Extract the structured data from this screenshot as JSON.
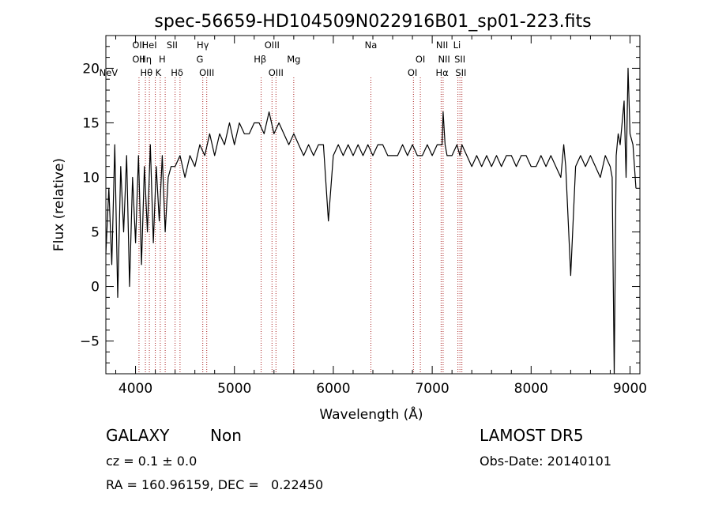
{
  "chart_data": {
    "type": "line",
    "title": "spec-56659-HD104509N022916B01_sp01-223.fits",
    "xlabel": "Wavelength (Å)",
    "ylabel": "Flux (relative)",
    "xlim": [
      3700,
      9100
    ],
    "ylim": [
      -8,
      23
    ],
    "xticks": [
      4000,
      5000,
      6000,
      7000,
      8000,
      9000
    ],
    "yticks": [
      -5,
      0,
      5,
      10,
      15,
      20
    ],
    "grid": false,
    "series": [
      {
        "color": "#000000",
        "x": [
          3700,
          3730,
          3760,
          3790,
          3820,
          3850,
          3880,
          3910,
          3940,
          3970,
          4000,
          4030,
          4060,
          4090,
          4120,
          4150,
          4180,
          4210,
          4240,
          4270,
          4300,
          4330,
          4360,
          4400,
          4450,
          4500,
          4550,
          4600,
          4650,
          4700,
          4750,
          4800,
          4850,
          4900,
          4950,
          5000,
          5050,
          5100,
          5150,
          5200,
          5250,
          5300,
          5350,
          5400,
          5450,
          5500,
          5550,
          5600,
          5650,
          5700,
          5750,
          5800,
          5850,
          5880,
          5900,
          5950,
          6000,
          6050,
          6100,
          6150,
          6200,
          6250,
          6300,
          6350,
          6400,
          6450,
          6500,
          6550,
          6600,
          6650,
          6700,
          6750,
          6800,
          6850,
          6900,
          6950,
          7000,
          7050,
          7100,
          7110,
          7130,
          7150,
          7200,
          7250,
          7280,
          7300,
          7350,
          7400,
          7450,
          7500,
          7550,
          7600,
          7650,
          7700,
          7750,
          7800,
          7850,
          7900,
          7950,
          8000,
          8050,
          8100,
          8150,
          8200,
          8250,
          8300,
          8330,
          8350,
          8400,
          8450,
          8500,
          8550,
          8600,
          8650,
          8700,
          8750,
          8800,
          8820,
          8840,
          8860,
          8880,
          8900,
          8920,
          8940,
          8960,
          8980,
          9000,
          9030,
          9060
        ],
        "y": [
          3,
          9,
          2,
          13,
          -1,
          11,
          5,
          12,
          0,
          10,
          4,
          12,
          2,
          11,
          5,
          13,
          4,
          11,
          6,
          12,
          5,
          10,
          11,
          11,
          12,
          10,
          12,
          11,
          13,
          12,
          14,
          12,
          14,
          13,
          15,
          13,
          15,
          14,
          14,
          15,
          15,
          14,
          16,
          14,
          15,
          14,
          13,
          14,
          13,
          12,
          13,
          12,
          13,
          13,
          13,
          6,
          12,
          13,
          12,
          13,
          12,
          13,
          12,
          13,
          12,
          13,
          13,
          12,
          12,
          12,
          13,
          12,
          13,
          12,
          12,
          13,
          12,
          13,
          13,
          16,
          13,
          12,
          12,
          13,
          12,
          13,
          12,
          11,
          12,
          11,
          12,
          11,
          12,
          11,
          12,
          12,
          11,
          12,
          12,
          11,
          11,
          12,
          11,
          12,
          11,
          10,
          13,
          11,
          1,
          11,
          12,
          11,
          12,
          11,
          10,
          12,
          11,
          10,
          -8,
          12,
          14,
          13,
          15,
          17,
          10,
          20,
          14,
          13,
          9
        ]
      }
    ],
    "line_markers": [
      {
        "label": "NeV",
        "x": 3727,
        "row": 3
      },
      {
        "label": "OII",
        "x": 4030,
        "row": 1
      },
      {
        "label": "OII",
        "x": 4030,
        "row": 2
      },
      {
        "label": "Hη",
        "x": 4100,
        "row": 2
      },
      {
        "label": "Hθ",
        "x": 4110,
        "row": 3
      },
      {
        "label": "HeI",
        "x": 4140,
        "row": 1
      },
      {
        "label": "K",
        "x": 4230,
        "row": 3
      },
      {
        "label": "H",
        "x": 4270,
        "row": 2
      },
      {
        "label": "SII",
        "x": 4370,
        "row": 1
      },
      {
        "label": "Hδ",
        "x": 4420,
        "row": 3
      },
      {
        "label": "Hγ",
        "x": 4680,
        "row": 1
      },
      {
        "label": "G",
        "x": 4650,
        "row": 2
      },
      {
        "label": "OIII",
        "x": 4720,
        "row": 3
      },
      {
        "label": "OIII",
        "x": 5380,
        "row": 1
      },
      {
        "label": "Hβ",
        "x": 5260,
        "row": 2
      },
      {
        "label": "OIII",
        "x": 5420,
        "row": 3
      },
      {
        "label": "Mg",
        "x": 5600,
        "row": 2
      },
      {
        "label": "Na",
        "x": 6380,
        "row": 1
      },
      {
        "label": "OI",
        "x": 6880,
        "row": 2
      },
      {
        "label": "OI",
        "x": 6800,
        "row": 3
      },
      {
        "label": "NII",
        "x": 7100,
        "row": 1
      },
      {
        "label": "NII",
        "x": 7120,
        "row": 2
      },
      {
        "label": "Hα",
        "x": 7100,
        "row": 3
      },
      {
        "label": "Li",
        "x": 7250,
        "row": 1
      },
      {
        "label": "SII",
        "x": 7280,
        "row": 2
      },
      {
        "label": "SII",
        "x": 7290,
        "row": 3
      }
    ],
    "marker_lines_x": [
      4035,
      4100,
      4140,
      4200,
      4250,
      4300,
      4400,
      4450,
      4680,
      4720,
      5270,
      5380,
      5420,
      5600,
      6380,
      6810,
      6880,
      7090,
      7110,
      7260,
      7280,
      7300
    ],
    "marker_color": "#aa2222"
  },
  "info": {
    "class": "GALAXY",
    "subclass": "Non",
    "survey": "LAMOST DR5",
    "cz": "cz = 0.1 ± 0.0",
    "obs_date": "Obs-Date: 20140101",
    "radec": "RA = 160.96159, DEC =   0.22450"
  }
}
